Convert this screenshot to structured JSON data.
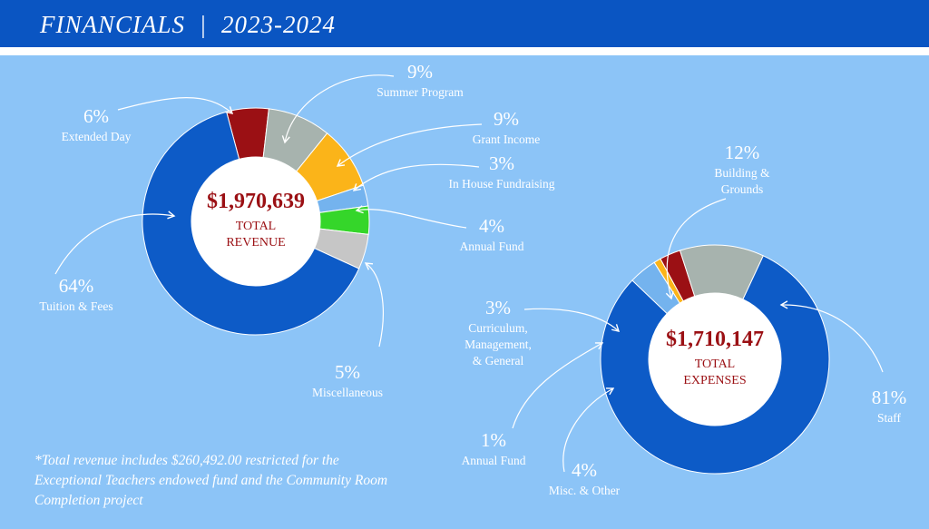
{
  "header": {
    "title": "FINANCIALS",
    "separator": "|",
    "years": "2023-2024"
  },
  "colors": {
    "header_bar": "#0a55c2",
    "background": "#8cc4f7",
    "accent_red": "#9b1014",
    "label_white": "#ffffff"
  },
  "chart_data": [
    {
      "type": "pie",
      "style": "donut",
      "center_value": "$1,970,639",
      "center_label_1": "TOTAL",
      "center_label_2": "REVENUE",
      "slices": [
        {
          "label": "Extended Day",
          "value": 6,
          "value_text": "6%",
          "color": "#9b1014"
        },
        {
          "label": "Summer Program",
          "value": 9,
          "value_text": "9%",
          "color": "#a7b3ae"
        },
        {
          "label": "Grant Income",
          "value": 9,
          "value_text": "9%",
          "color": "#fbb419"
        },
        {
          "label": "In House Fundraising",
          "value": 3,
          "value_text": "3%",
          "color": "#74b3ee"
        },
        {
          "label": "Annual Fund",
          "value": 4,
          "value_text": "4%",
          "color": "#35d62a"
        },
        {
          "label": "Miscellaneous",
          "value": 5,
          "value_text": "5%",
          "color": "#c6c6c6"
        },
        {
          "label": "Tuition & Fees",
          "value": 64,
          "value_text": "64%",
          "color": "#0d5bc7"
        }
      ]
    },
    {
      "type": "pie",
      "style": "donut",
      "center_value": "$1,710,147",
      "center_label_1": "TOTAL",
      "center_label_2": "EXPENSES",
      "slices": [
        {
          "label": "Staff",
          "value": 81,
          "value_text": "81%",
          "color": "#0d5bc7"
        },
        {
          "label": "Misc. & Other",
          "value": 4,
          "value_text": "4%",
          "color": "#74b3ee"
        },
        {
          "label": "Annual Fund",
          "value": 1,
          "value_text": "1%",
          "color": "#fbb419"
        },
        {
          "label": "Curriculum, Management, & General",
          "value": 3,
          "value_text": "3%",
          "color": "#9b1014"
        },
        {
          "label": "Building & Grounds",
          "value": 12,
          "value_text": "12%",
          "color": "#a7b3ae"
        }
      ]
    }
  ],
  "callouts": {
    "revenue": [
      {
        "pct": "6%",
        "lines": [
          "Extended Day"
        ]
      },
      {
        "pct": "9%",
        "lines": [
          "Summer Program"
        ]
      },
      {
        "pct": "9%",
        "lines": [
          "Grant Income"
        ]
      },
      {
        "pct": "3%",
        "lines": [
          "In House Fundraising"
        ]
      },
      {
        "pct": "4%",
        "lines": [
          "Annual Fund"
        ]
      },
      {
        "pct": "5%",
        "lines": [
          "Miscellaneous"
        ]
      },
      {
        "pct": "64%",
        "lines": [
          "Tuition & Fees"
        ]
      }
    ],
    "expenses": [
      {
        "pct": "81%",
        "lines": [
          "Staff"
        ]
      },
      {
        "pct": "4%",
        "lines": [
          "Misc. & Other"
        ]
      },
      {
        "pct": "1%",
        "lines": [
          "Annual Fund"
        ]
      },
      {
        "pct": "3%",
        "lines": [
          "Curriculum,",
          "Management,",
          "& General"
        ]
      },
      {
        "pct": "12%",
        "lines": [
          "Building &",
          "Grounds"
        ]
      }
    ]
  },
  "footnote": "*Total revenue includes $260,492.00 restricted for the Exceptional Teachers endowed fund and the Community Room Completion project"
}
